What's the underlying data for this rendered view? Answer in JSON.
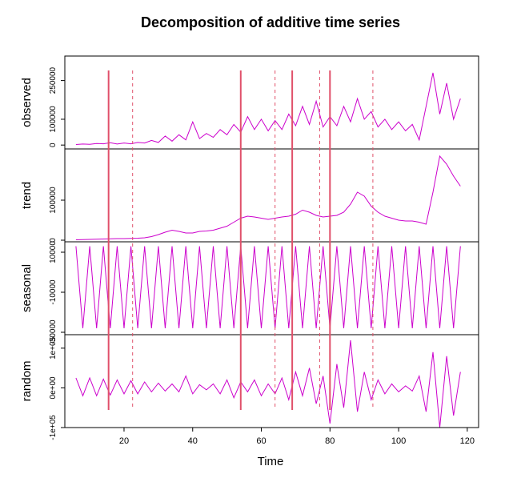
{
  "chart_data": {
    "type": "line",
    "title": "Decomposition of additive time series",
    "xlabel": "Time",
    "color": "#cc00cc",
    "xlim": [
      2.75,
      123.3
    ],
    "xticks": [
      20,
      40,
      60,
      80,
      100,
      120
    ],
    "x": [
      6,
      8,
      10,
      12,
      14,
      16,
      18,
      20,
      22,
      24,
      26,
      28,
      30,
      32,
      34,
      36,
      38,
      40,
      42,
      44,
      46,
      48,
      50,
      52,
      54,
      56,
      58,
      60,
      62,
      64,
      66,
      68,
      70,
      72,
      74,
      76,
      78,
      80,
      82,
      84,
      86,
      88,
      90,
      92,
      94,
      96,
      98,
      100,
      102,
      104,
      106,
      108,
      110,
      112,
      114,
      116,
      118
    ],
    "vline_color": "#e0506a",
    "vlines": [
      {
        "x": 15.5,
        "style": "solid"
      },
      {
        "x": 22.5,
        "style": "dashed"
      },
      {
        "x": 54,
        "style": "solid"
      },
      {
        "x": 64,
        "style": "dashed"
      },
      {
        "x": 69,
        "style": "solid"
      },
      {
        "x": 77,
        "style": "dashed"
      },
      {
        "x": 80,
        "style": "solid"
      },
      {
        "x": 92.5,
        "style": "dashed"
      }
    ],
    "panels": [
      {
        "name": "observed",
        "ylim": [
          -15000,
          345000
        ],
        "yticks": [
          0,
          100000,
          250000
        ],
        "values": [
          2000,
          4000,
          3000,
          6000,
          5000,
          9000,
          4000,
          8000,
          5000,
          10000,
          8000,
          18000,
          10000,
          35000,
          15000,
          40000,
          20000,
          90000,
          25000,
          45000,
          30000,
          60000,
          40000,
          80000,
          50000,
          110000,
          60000,
          100000,
          55000,
          95000,
          60000,
          120000,
          75000,
          150000,
          80000,
          170000,
          70000,
          110000,
          75000,
          150000,
          90000,
          180000,
          100000,
          130000,
          70000,
          100000,
          60000,
          90000,
          55000,
          80000,
          20000,
          150000,
          280000,
          120000,
          240000,
          100000,
          180000
        ]
      },
      {
        "name": "trend",
        "ylim": [
          -4000,
          228000
        ],
        "yticks": [
          0,
          100000
        ],
        "values": [
          1000,
          1500,
          2000,
          2500,
          3000,
          3500,
          4000,
          4000,
          4500,
          5000,
          6000,
          9000,
          14000,
          20000,
          25000,
          22000,
          18000,
          18000,
          22000,
          23000,
          25000,
          30000,
          35000,
          45000,
          55000,
          60000,
          58000,
          55000,
          52000,
          55000,
          58000,
          60000,
          65000,
          75000,
          70000,
          62000,
          58000,
          60000,
          62000,
          70000,
          90000,
          120000,
          110000,
          85000,
          70000,
          60000,
          55000,
          50000,
          48000,
          48000,
          45000,
          40000,
          120000,
          210000,
          190000,
          160000,
          135000
        ]
      },
      {
        "name": "seasonal",
        "ylim": [
          -31200,
          15200
        ],
        "yticks": [
          -30000,
          -10000,
          10000
        ],
        "values": [
          13000,
          -28000,
          13000,
          -28000,
          13000,
          -28000,
          13000,
          -28000,
          13000,
          -28000,
          13000,
          -28000,
          13000,
          -28000,
          13000,
          -28000,
          13000,
          -28000,
          13000,
          -28000,
          13000,
          -28000,
          13000,
          -28000,
          13000,
          -28000,
          13000,
          -28000,
          13000,
          -28000,
          13000,
          -28000,
          13000,
          -28000,
          13000,
          -28000,
          13000,
          -28000,
          13000,
          -28000,
          13000,
          -28000,
          13000,
          -28000,
          13000,
          -28000,
          13000,
          -28000,
          13000,
          -28000,
          13000,
          -28000,
          13000,
          -28000,
          13000,
          -28000,
          13000
        ]
      },
      {
        "name": "random",
        "ylim": [
          -100000,
          134000
        ],
        "yticks": [
          {
            "value": -100000,
            "label": "-1e+05"
          },
          {
            "value": 0,
            "label": "0e+00"
          },
          {
            "value": 100000,
            "label": "1e+05"
          }
        ],
        "values": [
          25000,
          -20000,
          25000,
          -20000,
          22000,
          -18000,
          20000,
          -15000,
          18000,
          -15000,
          15000,
          -10000,
          12000,
          -8000,
          10000,
          -10000,
          30000,
          -15000,
          8000,
          -5000,
          10000,
          -15000,
          20000,
          -25000,
          15000,
          -10000,
          20000,
          -20000,
          10000,
          -15000,
          25000,
          -30000,
          40000,
          -20000,
          50000,
          -40000,
          30000,
          -90000,
          60000,
          -50000,
          120000,
          -60000,
          40000,
          -30000,
          20000,
          -15000,
          10000,
          -10000,
          5000,
          -8000,
          30000,
          -60000,
          90000,
          -100000,
          80000,
          -70000,
          40000
        ]
      }
    ]
  }
}
